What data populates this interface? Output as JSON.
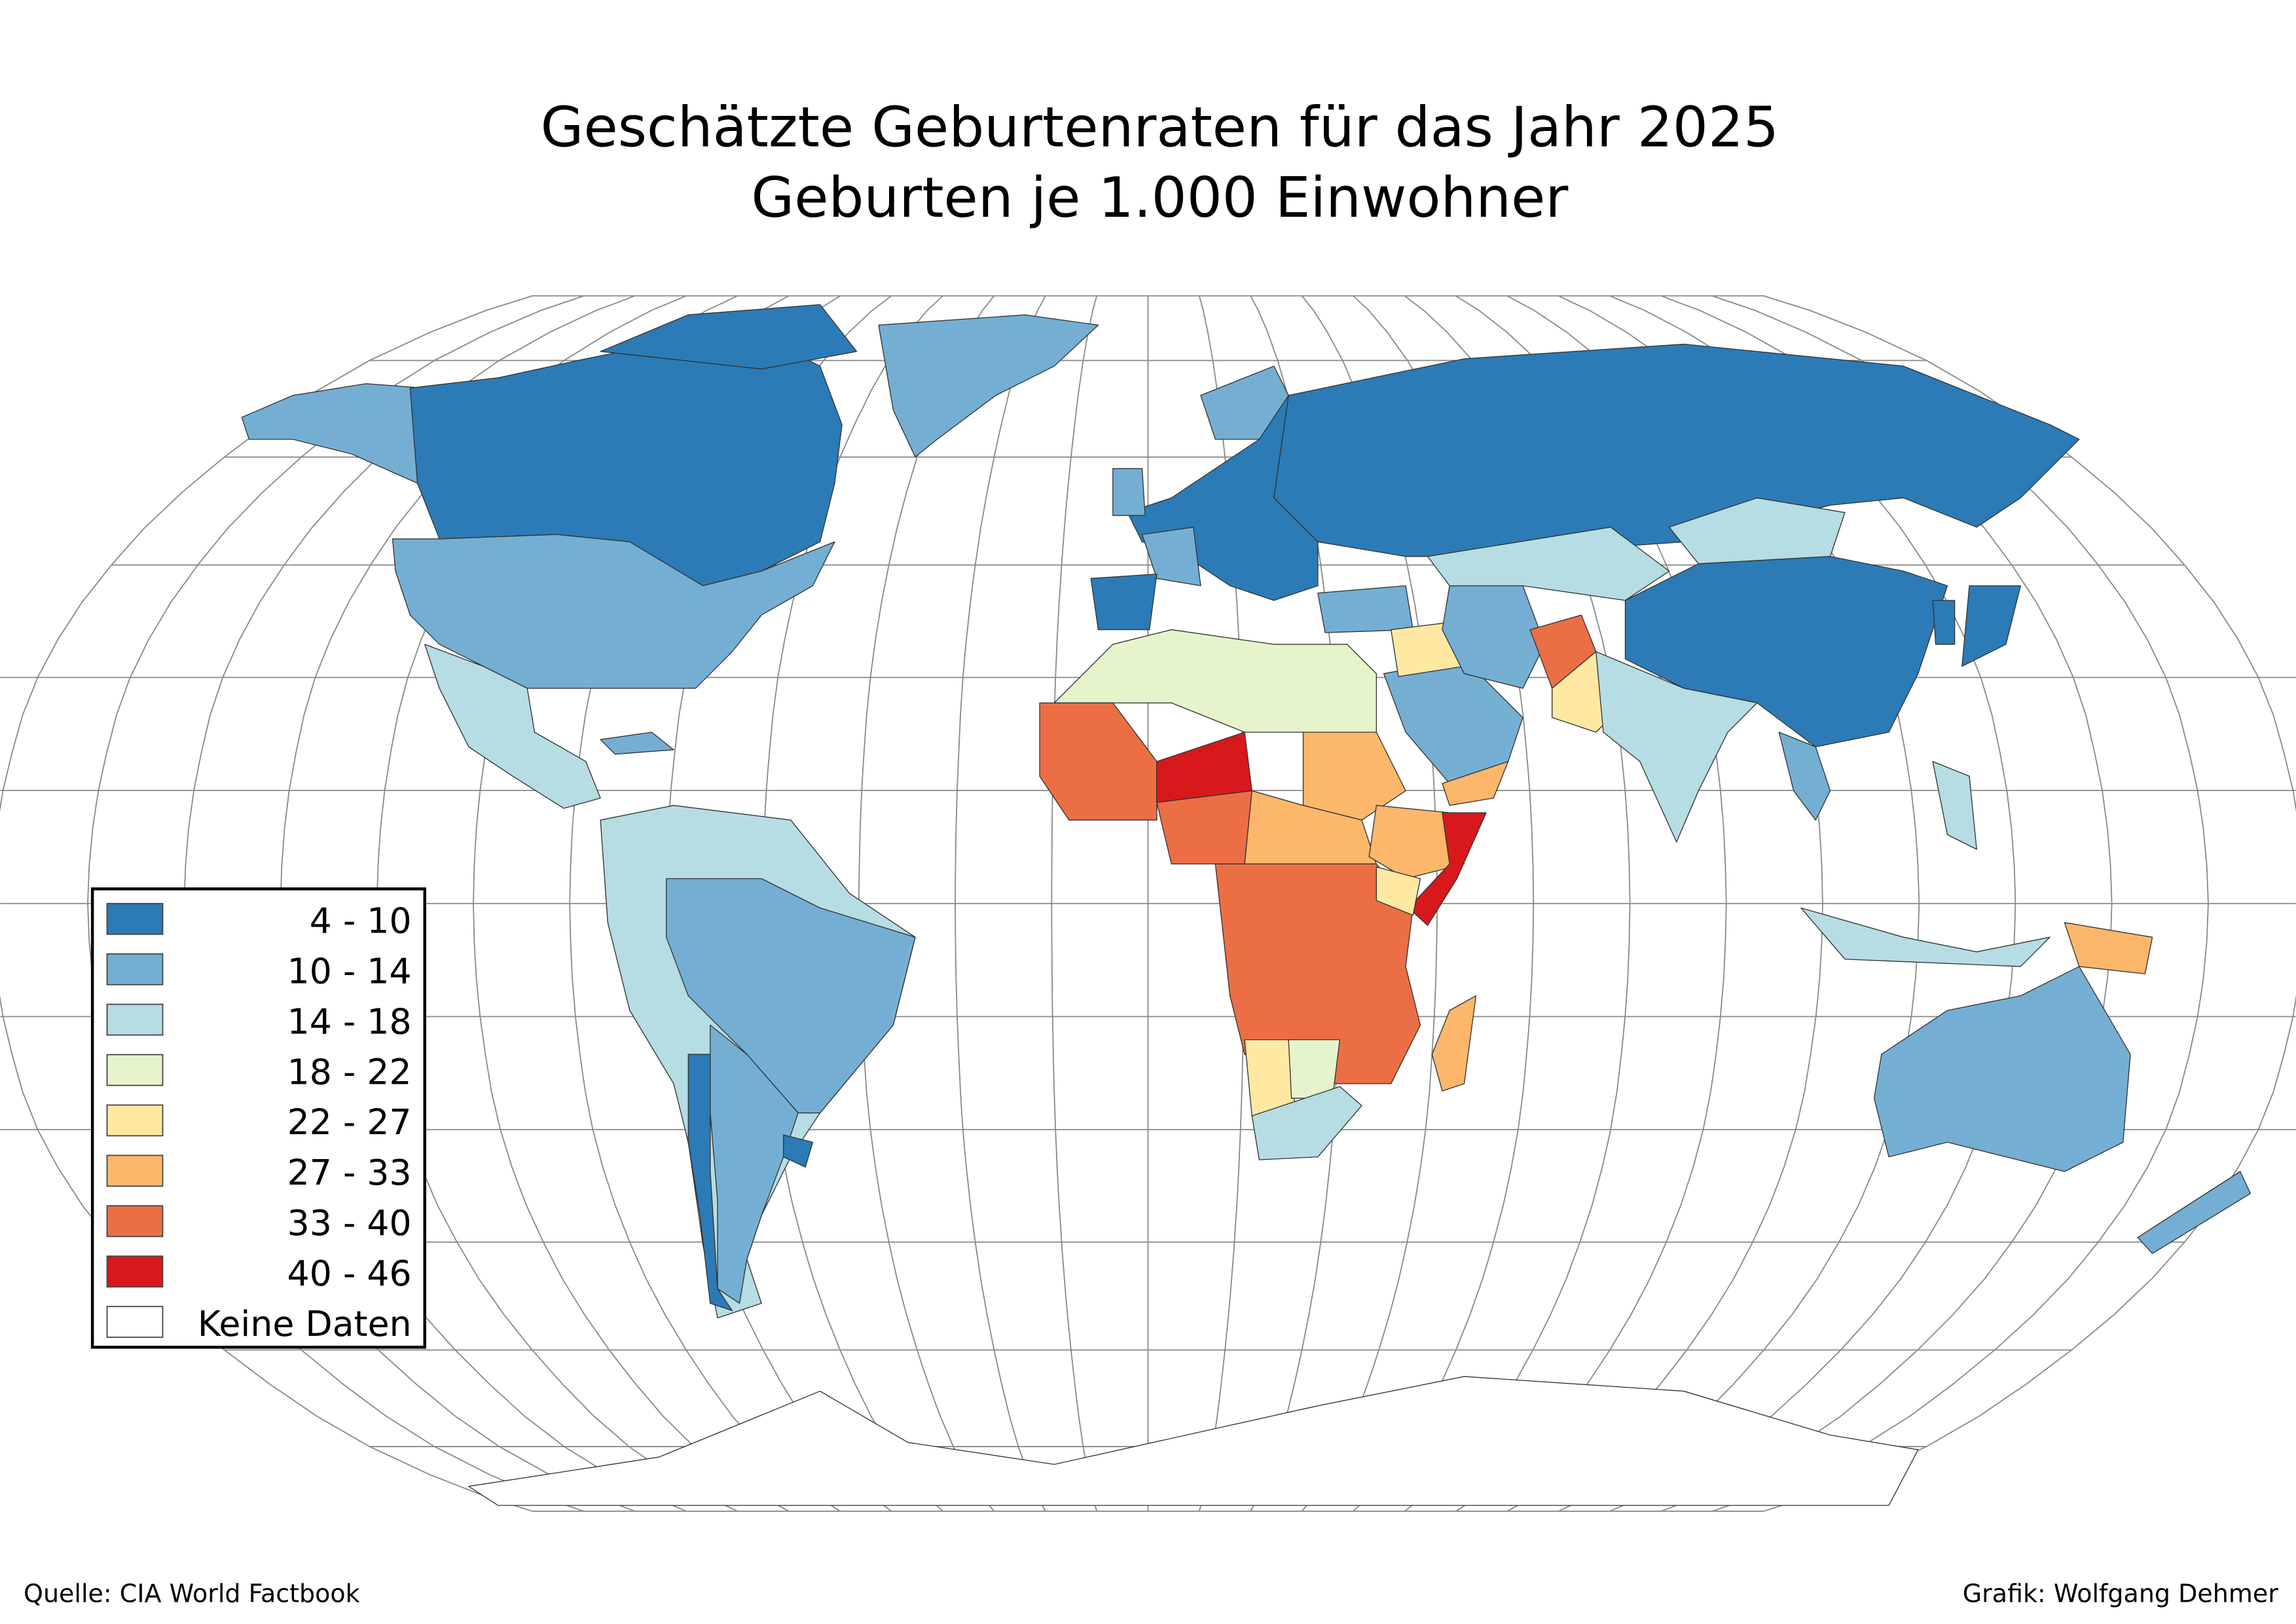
{
  "title": {
    "line1": "Geschätzte Geburtenraten für das Jahr 2025",
    "line2": "Geburten je 1.000 Einwohner"
  },
  "legend": {
    "items": [
      {
        "label": "4 - 10",
        "color": "#2c7bb6"
      },
      {
        "label": "10 - 14",
        "color": "#74afd3"
      },
      {
        "label": "14 - 18",
        "color": "#b5dde3"
      },
      {
        "label": "18 - 22",
        "color": "#e5f4cb"
      },
      {
        "label": "22 - 27",
        "color": "#fee8a2"
      },
      {
        "label": "27 - 33",
        "color": "#fdb76b"
      },
      {
        "label": "33 - 40",
        "color": "#ec6e45"
      },
      {
        "label": "40 - 46",
        "color": "#d7191c"
      },
      {
        "label": "Keine Daten",
        "color": "#ffffff"
      }
    ]
  },
  "map": {
    "projection": "Robinson",
    "graticule_step_degrees": 15
  },
  "footer": {
    "source": "Quelle: CIA World Factbook",
    "credit": "Grafik: Wolfgang Dehmer"
  }
}
